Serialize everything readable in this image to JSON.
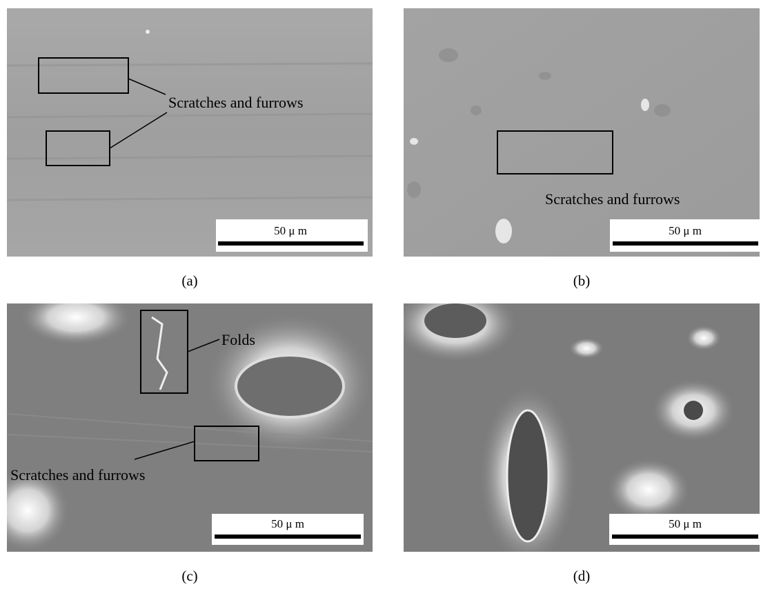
{
  "panels": [
    {
      "label": "(a)",
      "annotations": [
        "Scratches and furrows"
      ],
      "scale_bar": "50 μ m"
    },
    {
      "label": "(b)",
      "annotations": [
        "Scratches and furrows"
      ],
      "scale_bar": "50 μ m"
    },
    {
      "label": "(c)",
      "annotations": [
        "Folds",
        "Scratches and furrows"
      ],
      "scale_bar": "50 μ m"
    },
    {
      "label": "(d)",
      "annotations": [],
      "scale_bar": "50 μ m"
    }
  ]
}
